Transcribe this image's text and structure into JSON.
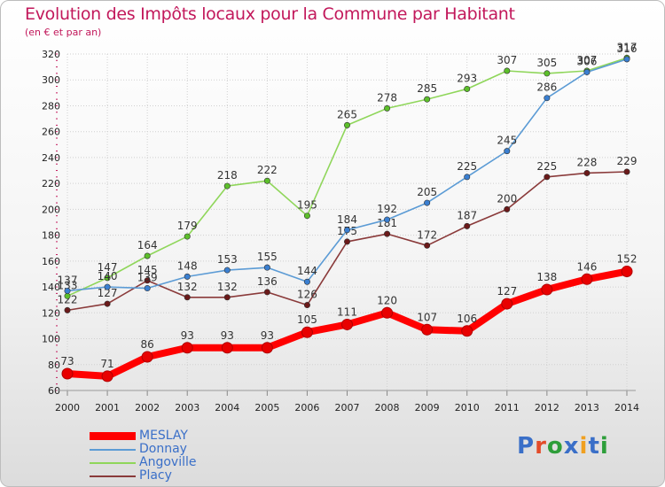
{
  "title": "Evolution des Impôts locaux pour la Commune par Habitant",
  "subtitle": "(en € et par an)",
  "logo": {
    "text": "Proxiti",
    "letter_colors": [
      "#3a6fc8",
      "#e34c2a",
      "#2e9e3a",
      "#3a6fc8",
      "#f0a020",
      "#3a6fc8",
      "#2e9e3a"
    ]
  },
  "chart_data": {
    "type": "line",
    "title": "Evolution des Impôts locaux pour la Commune par Habitant",
    "subtitle": "(en € et par an)",
    "x": [
      "2000",
      "2001",
      "2002",
      "2003",
      "2004",
      "2005",
      "2006",
      "2007",
      "2008",
      "2009",
      "2010",
      "2011",
      "2012",
      "2013",
      "2014"
    ],
    "ylim": [
      60,
      320
    ],
    "yticks": [
      60,
      80,
      100,
      120,
      140,
      160,
      180,
      200,
      220,
      240,
      260,
      280,
      300,
      320
    ],
    "grid": true,
    "legend_position": "bottom-left",
    "series": [
      {
        "name": "MESLAY",
        "color": "#e80000",
        "line_color": "#ff0000",
        "bold": true,
        "values": [
          73,
          71,
          86,
          93,
          93,
          93,
          105,
          111,
          120,
          107,
          106,
          127,
          138,
          146,
          152
        ],
        "labels": [
          "73",
          "71",
          "86",
          "93",
          "93",
          "93",
          "105",
          "111",
          "120",
          "107",
          "106",
          "127",
          "138",
          "146",
          "152"
        ]
      },
      {
        "name": "Donnay",
        "color": "#3a7fd1",
        "line_color": "#5b9bd5",
        "bold": false,
        "values": [
          137,
          140,
          139,
          148,
          153,
          155,
          144,
          184,
          192,
          205,
          225,
          245,
          286,
          306,
          316
        ],
        "labels": [
          "137",
          "140",
          "139",
          "148",
          "153",
          "155",
          "144",
          "184",
          "192",
          "205",
          "225",
          "245",
          "286",
          "306",
          "316"
        ]
      },
      {
        "name": "Angoville",
        "color": "#5cbf2a",
        "line_color": "#8fd65a",
        "bold": false,
        "values": [
          133,
          147,
          164,
          179,
          218,
          222,
          195,
          265,
          278,
          285,
          293,
          307,
          305,
          307,
          317
        ],
        "labels": [
          "133",
          "147",
          "164",
          "179",
          "218",
          "222",
          "195",
          "265",
          "278",
          "285",
          "293",
          "307",
          "305",
          "307",
          "317"
        ]
      },
      {
        "name": "Placy",
        "color": "#6b1a1a",
        "line_color": "#8a3a3a",
        "bold": false,
        "values": [
          122,
          127,
          145,
          132,
          132,
          136,
          126,
          175,
          181,
          172,
          187,
          200,
          225,
          228,
          229
        ],
        "labels": [
          "122",
          "127",
          "145",
          "132",
          "132",
          "136",
          "126",
          "175",
          "181",
          "172",
          "187",
          "200",
          "225",
          "228",
          "229"
        ]
      }
    ]
  }
}
